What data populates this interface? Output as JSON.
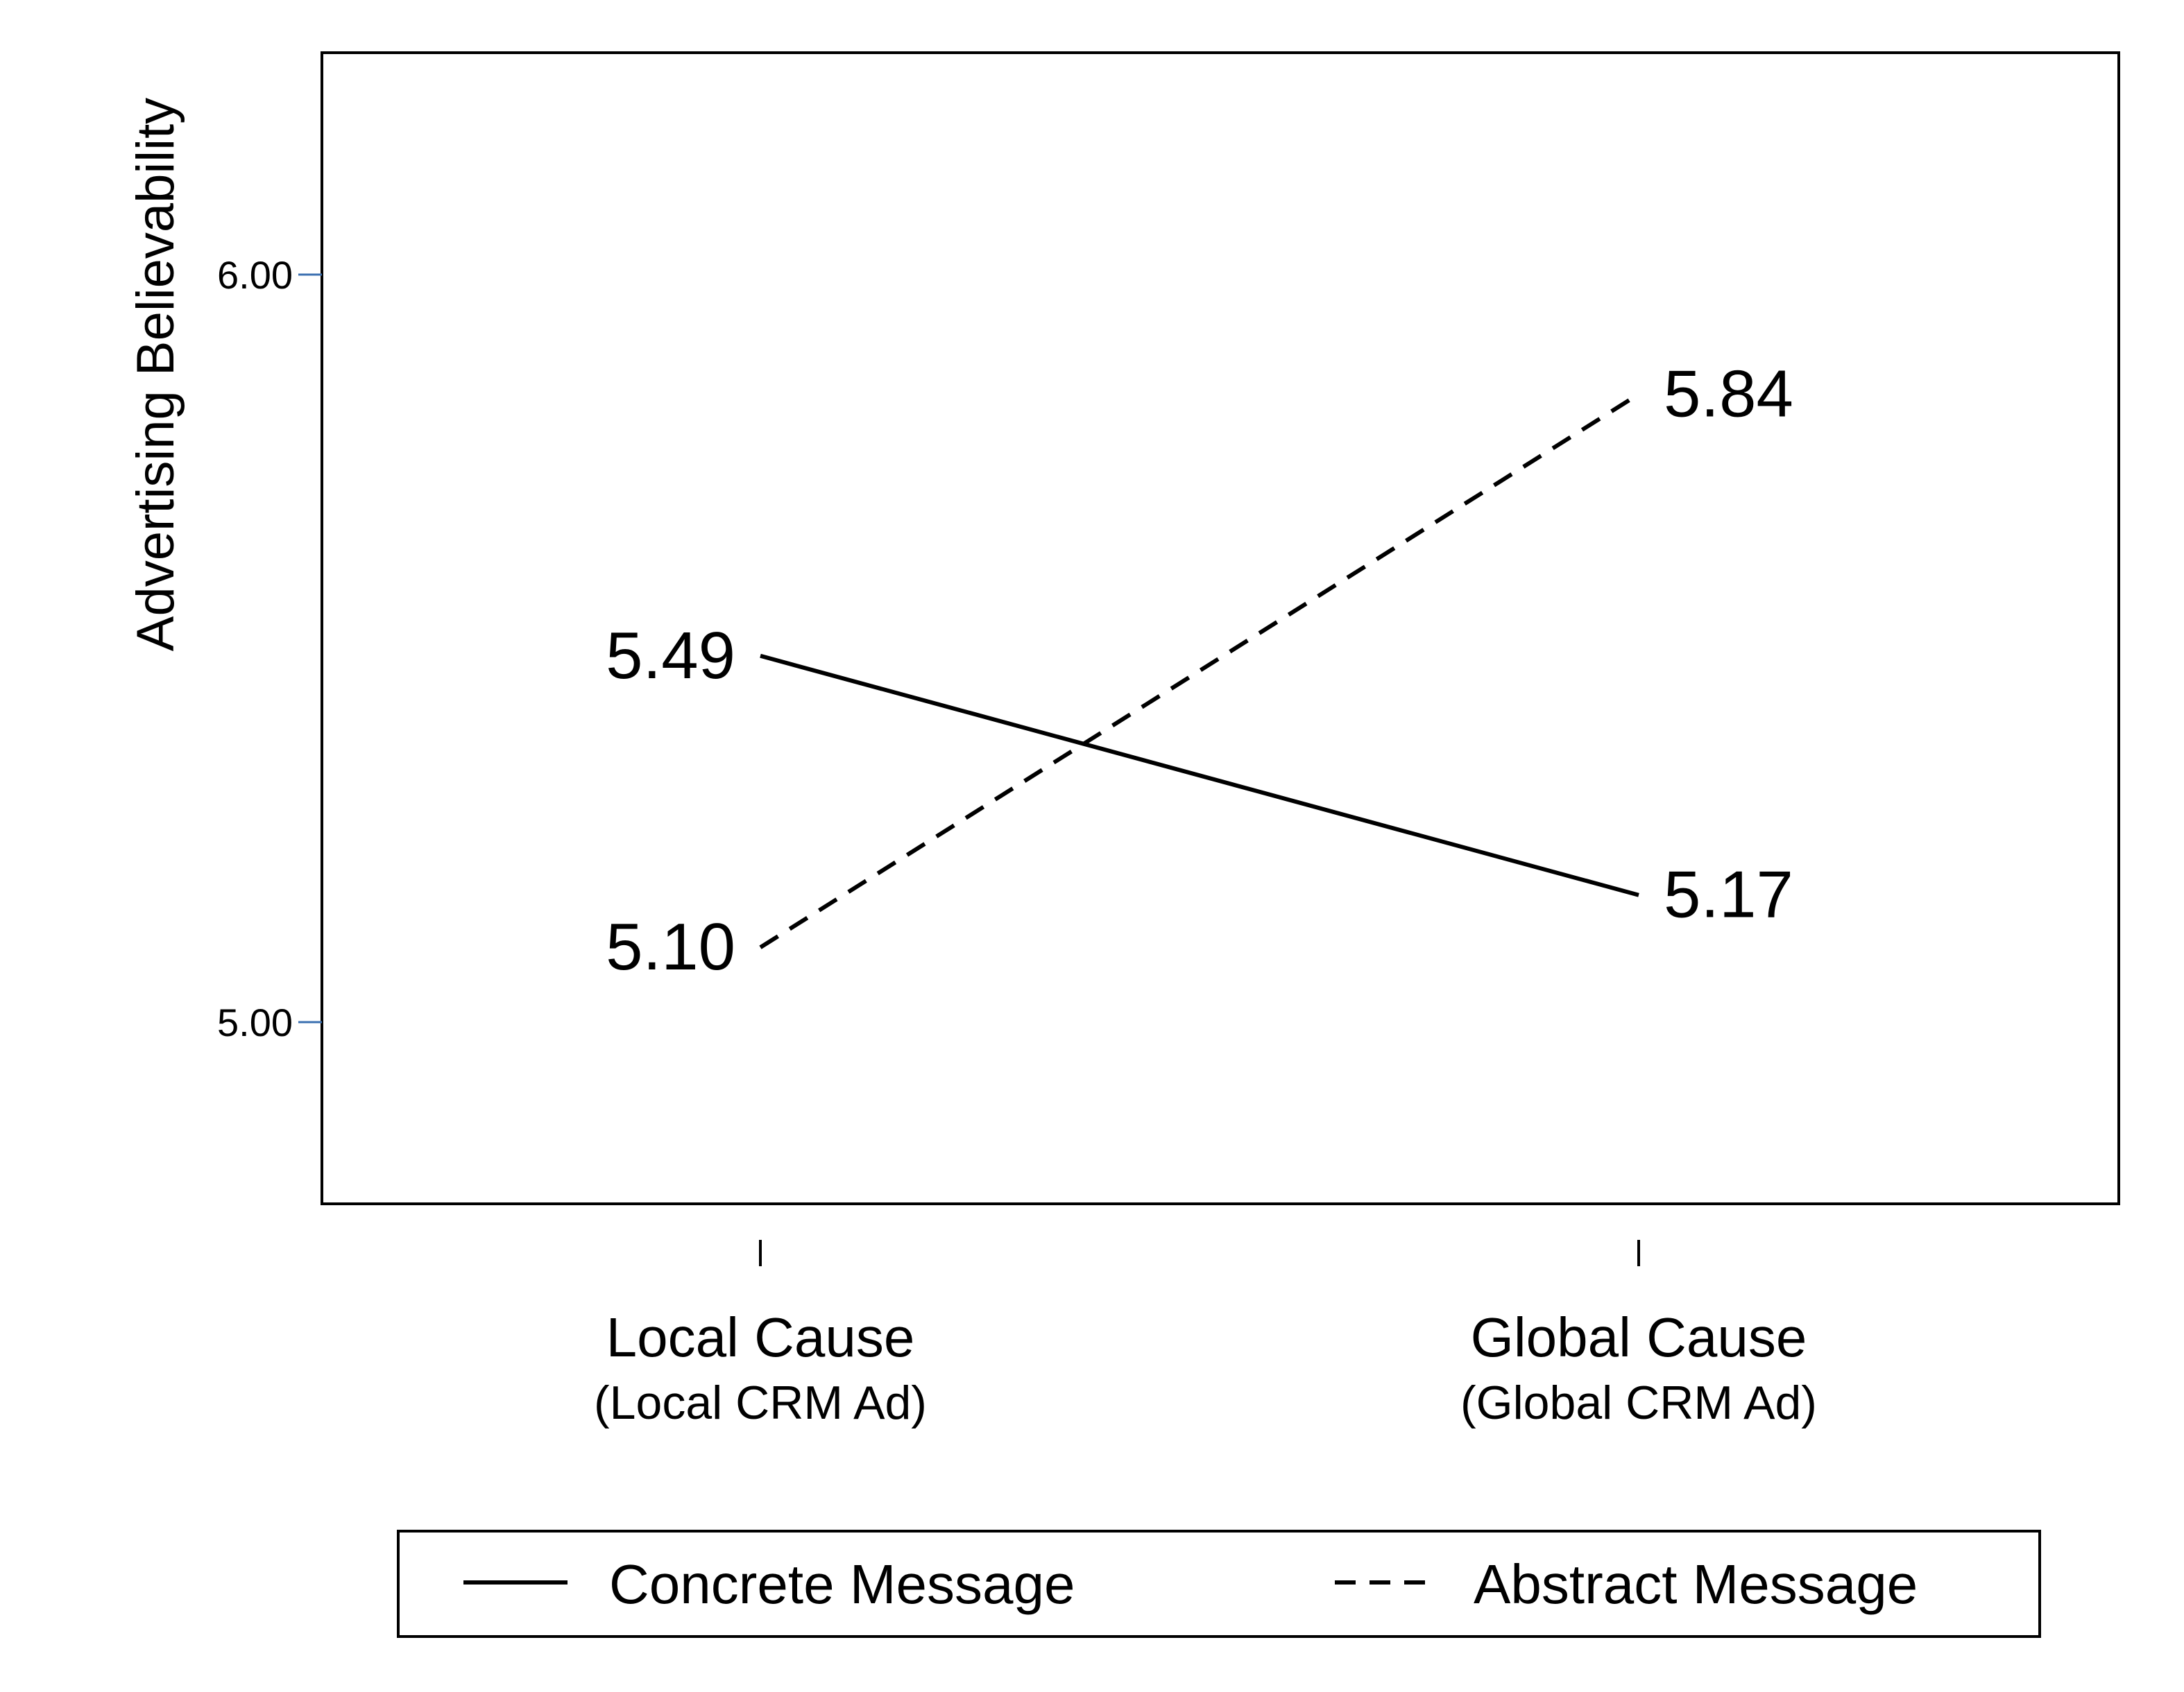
{
  "chart_data": {
    "type": "line",
    "title": "",
    "xlabel": "",
    "ylabel": "Advertising Believability",
    "categories": [
      {
        "label": "Local Cause",
        "sublabel": "(Local CRM Ad)"
      },
      {
        "label": "Global Cause",
        "sublabel": "(Global CRM Ad)"
      }
    ],
    "series": [
      {
        "name": "Concrete Message",
        "style": "solid",
        "color": "#000000",
        "values": [
          5.49,
          5.17
        ],
        "labels": [
          "5.49",
          "5.17"
        ]
      },
      {
        "name": "Abstract Message",
        "style": "dashed",
        "color": "#000000",
        "values": [
          5.1,
          5.84
        ],
        "labels": [
          "5.10",
          "5.84"
        ]
      }
    ],
    "yticks": [
      5.0,
      6.0
    ],
    "ytick_labels": [
      "5.00",
      "6.00"
    ],
    "ylim": [
      4.77,
      6.3
    ],
    "ytick_color": "#3a6fb0",
    "grid": false,
    "legend_position": "bottom"
  }
}
